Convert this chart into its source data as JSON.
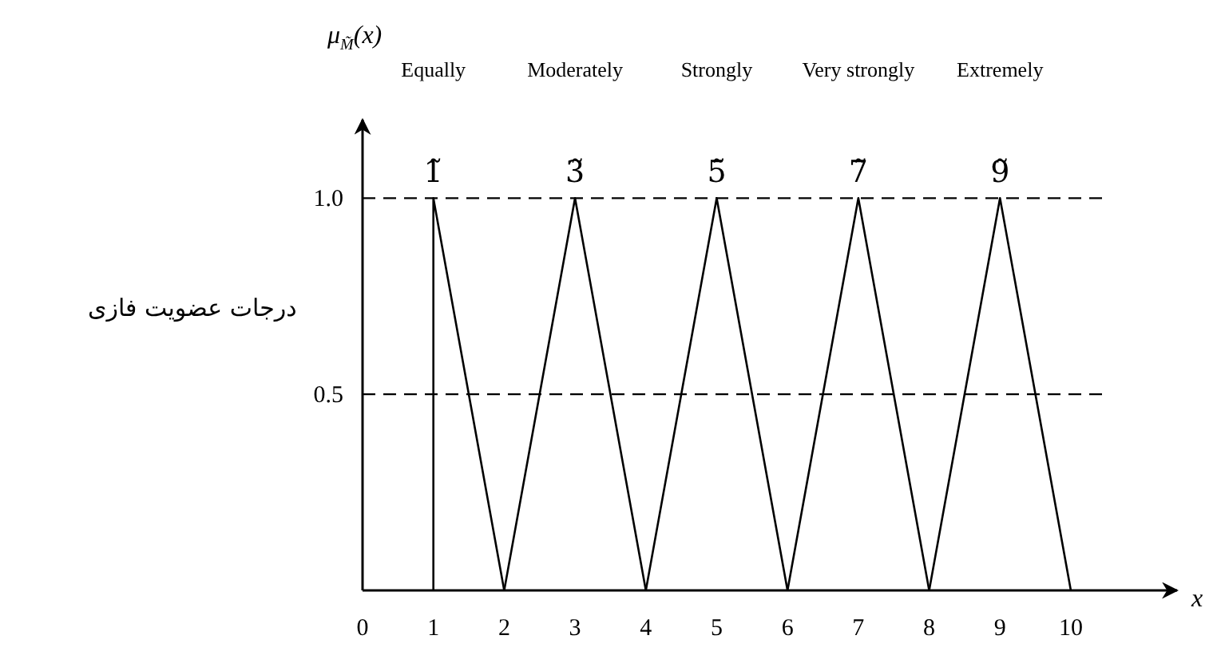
{
  "chart_data": {
    "type": "line",
    "ylabel": "μ$_{M̃}$(x)",
    "xlabel": "x",
    "line_style": "solid",
    "grid": false,
    "xlim": [
      0,
      11.5
    ],
    "ylim": [
      0,
      1.2
    ],
    "xticks": [
      0,
      1,
      2,
      3,
      4,
      5,
      6,
      7,
      8,
      9,
      10
    ],
    "yticks": [
      {
        "value": 0.5,
        "label": "0.5"
      },
      {
        "value": 1,
        "label": "1.0"
      }
    ],
    "ref_lines": [
      {
        "axis": "y",
        "value": 0.5,
        "color": "#000000",
        "line_style": "dashed"
      },
      {
        "axis": "y",
        "value": 1,
        "color": "#000000",
        "line_style": "dashed"
      }
    ],
    "series": [
      {
        "name": "1̃",
        "color": "#000000",
        "x": [
          1,
          1,
          2
        ],
        "values": [
          0,
          1,
          0
        ]
      },
      {
        "name": "3̃",
        "color": "#000000",
        "x": [
          2,
          3,
          4
        ],
        "values": [
          0,
          1,
          0
        ]
      },
      {
        "name": "5̃",
        "color": "#000000",
        "x": [
          4,
          5,
          6
        ],
        "values": [
          0,
          1,
          0
        ]
      },
      {
        "name": "7̃",
        "color": "#000000",
        "x": [
          6,
          7,
          8
        ],
        "values": [
          0,
          1,
          0
        ]
      },
      {
        "name": "9̃",
        "color": "#000000",
        "x": [
          8,
          9,
          10
        ],
        "values": [
          0,
          1,
          0
        ]
      }
    ],
    "annotations": [
      "Equally",
      "Moderately",
      "Strongly",
      "Very strongly",
      "Extremely",
      "درجات عضویت فازی"
    ]
  }
}
